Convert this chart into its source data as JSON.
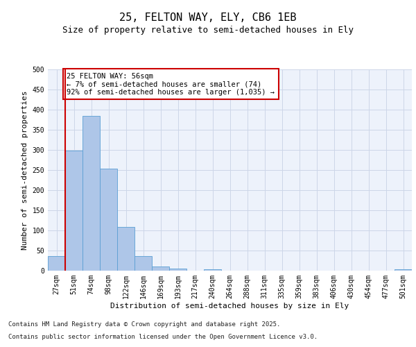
{
  "title": "25, FELTON WAY, ELY, CB6 1EB",
  "subtitle": "Size of property relative to semi-detached houses in Ely",
  "xlabel": "Distribution of semi-detached houses by size in Ely",
  "ylabel": "Number of semi-detached properties",
  "categories": [
    "27sqm",
    "51sqm",
    "74sqm",
    "98sqm",
    "122sqm",
    "146sqm",
    "169sqm",
    "193sqm",
    "217sqm",
    "240sqm",
    "264sqm",
    "288sqm",
    "311sqm",
    "335sqm",
    "359sqm",
    "383sqm",
    "406sqm",
    "430sqm",
    "454sqm",
    "477sqm",
    "501sqm"
  ],
  "values": [
    37,
    298,
    385,
    254,
    108,
    37,
    11,
    6,
    0,
    4,
    0,
    0,
    0,
    0,
    0,
    0,
    0,
    0,
    0,
    0,
    4
  ],
  "bar_color": "#aec6e8",
  "bar_edge_color": "#5a9fd4",
  "annotation_text": "25 FELTON WAY: 56sqm\n← 7% of semi-detached houses are smaller (74)\n92% of semi-detached houses are larger (1,035) →",
  "annotation_box_color": "#ffffff",
  "annotation_box_edge_color": "#cc0000",
  "red_line_color": "#cc0000",
  "ylim": [
    0,
    500
  ],
  "yticks": [
    0,
    50,
    100,
    150,
    200,
    250,
    300,
    350,
    400,
    450,
    500
  ],
  "grid_color": "#ccd6e8",
  "background_color": "#edf2fb",
  "footer_line1": "Contains HM Land Registry data © Crown copyright and database right 2025.",
  "footer_line2": "Contains public sector information licensed under the Open Government Licence v3.0.",
  "title_fontsize": 11,
  "subtitle_fontsize": 9,
  "axis_label_fontsize": 8,
  "tick_fontsize": 7,
  "annotation_fontsize": 7.5,
  "footer_fontsize": 6.5
}
